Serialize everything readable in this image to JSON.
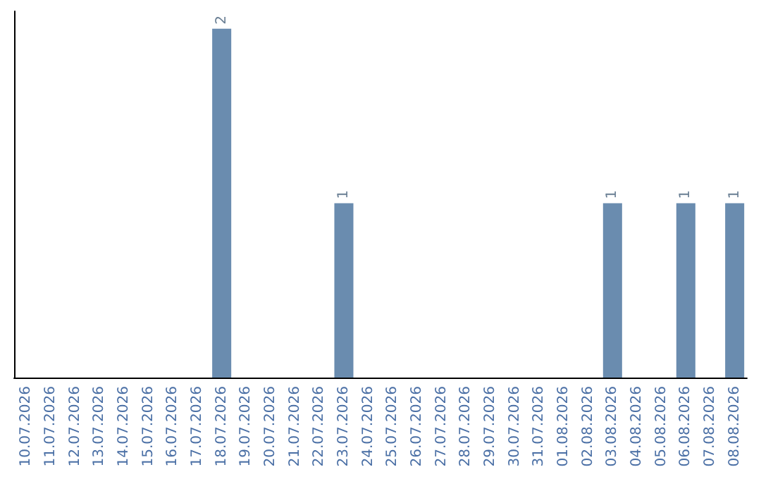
{
  "chart_data": {
    "type": "bar",
    "categories": [
      "10.07.2026",
      "11.07.2026",
      "12.07.2026",
      "13.07.2026",
      "14.07.2026",
      "15.07.2026",
      "16.07.2026",
      "17.07.2026",
      "18.07.2026",
      "19.07.2026",
      "20.07.2026",
      "21.07.2026",
      "22.07.2026",
      "23.07.2026",
      "24.07.2026",
      "25.07.2026",
      "26.07.2026",
      "27.07.2026",
      "28.07.2026",
      "29.07.2026",
      "30.07.2026",
      "31.07.2026",
      "01.08.2026",
      "02.08.2026",
      "03.08.2026",
      "04.08.2026",
      "05.08.2026",
      "06.08.2026",
      "07.08.2026",
      "08.08.2026"
    ],
    "values": [
      0,
      0,
      0,
      0,
      0,
      0,
      0,
      0,
      2,
      0,
      0,
      0,
      0,
      1,
      0,
      0,
      0,
      0,
      0,
      0,
      0,
      0,
      0,
      0,
      1,
      0,
      0,
      1,
      0,
      1
    ],
    "value_labels": [
      null,
      null,
      null,
      null,
      null,
      null,
      null,
      null,
      "2",
      null,
      null,
      null,
      null,
      "1",
      null,
      null,
      null,
      null,
      null,
      null,
      null,
      null,
      null,
      null,
      "1",
      null,
      null,
      "1",
      null,
      "1"
    ],
    "color": "#6a8caf",
    "tick_labels": "x"
  }
}
